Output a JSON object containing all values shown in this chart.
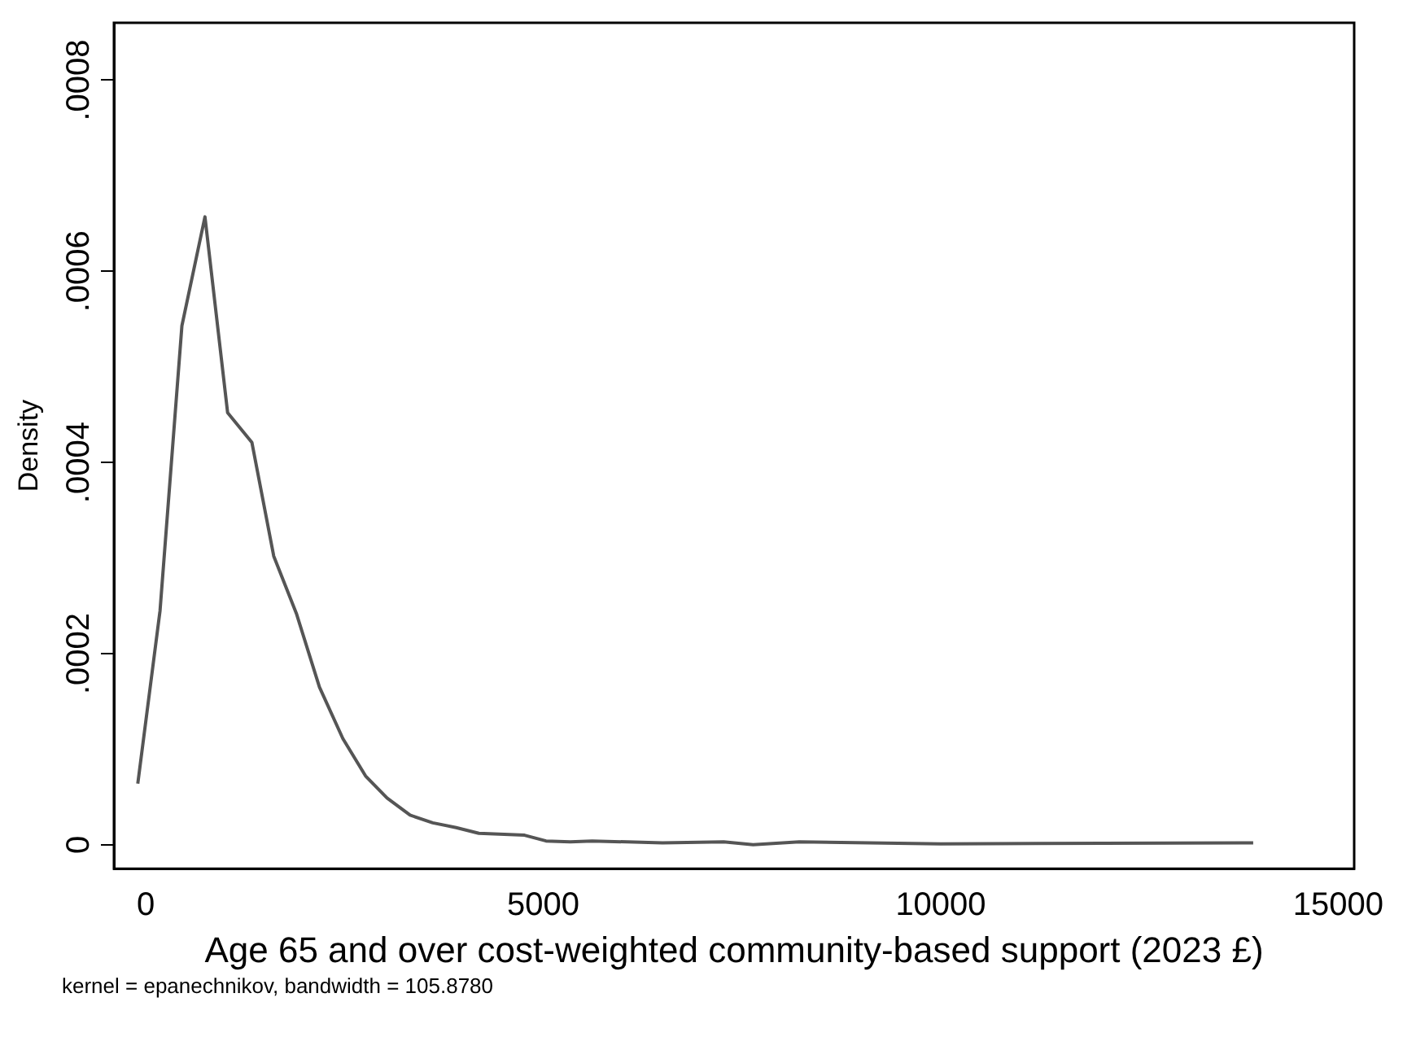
{
  "chart_data": {
    "type": "line",
    "xlabel": "Age 65 and over cost-weighted community-based support (2023 £)",
    "ylabel": "Density",
    "annotations": [
      "kernel = epanechnikov, bandwidth = 105.8780"
    ],
    "series": [
      {
        "color": "#555555",
        "x": [
          -100,
          180,
          455,
          745,
          1030,
          1335,
          1610,
          1895,
          2185,
          2480,
          2765,
          3035,
          3325,
          3610,
          3905,
          4190,
          4765,
          5035,
          5340,
          5615,
          6500,
          7270,
          7640,
          8220,
          10000,
          13930
        ],
        "values": [
          6.4e-05,
          0.000245,
          0.000543,
          0.000657,
          0.000452,
          0.000421,
          0.000302,
          0.000242,
          0.000165,
          0.000111,
          7.2e-05,
          4.9e-05,
          3.1e-05,
          2.3e-05,
          1.8e-05,
          1.2e-05,
          1e-05,
          4e-06,
          3e-06,
          4e-06,
          2e-06,
          3e-06,
          0,
          3e-06,
          1e-06,
          2e-06
        ]
      }
    ],
    "xlim": [
      -400,
      15200
    ],
    "xticks": [
      0,
      5000,
      10000,
      15000
    ],
    "ylim": [
      -2.5e-05,
      0.00086
    ],
    "yticks": [
      0,
      {
        "value": 0.0002,
        "label": ".0002"
      },
      {
        "value": 0.0004,
        "label": ".0004"
      },
      {
        "value": 0.0006,
        "label": ".0006"
      },
      {
        "value": 0.0008,
        "label": ".0008"
      }
    ],
    "grid": false,
    "legend": false,
    "marker": "none",
    "line_style": "solid"
  }
}
